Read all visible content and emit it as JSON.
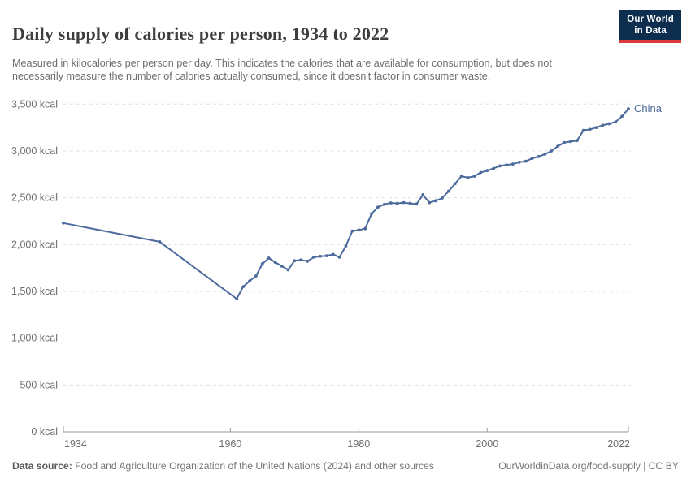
{
  "header": {
    "title": "Daily supply of calories per person, 1934 to 2022",
    "subtitle": "Measured in kilocalories per person per day. This indicates the calories that are available for consumption, but does not necessarily measure the number of calories actually consumed, since it doesn't factor in consumer waste.",
    "logo_line1": "Our World",
    "logo_line2": "in Data",
    "logo_bg_color": "#0d2e4e",
    "logo_stripe_color": "#dc3a40"
  },
  "chart_data": {
    "type": "line",
    "title": "Daily supply of calories per person, 1934 to 2022",
    "xlabel": "",
    "ylabel": "",
    "xlim": [
      1934,
      2022
    ],
    "ylim": [
      0,
      3500
    ],
    "grid": "horizontal-dashed",
    "legend_position": "end-of-line-label",
    "x_ticks": [
      1934,
      1960,
      1980,
      2000,
      2022
    ],
    "y_ticks": [
      0,
      500,
      1000,
      1500,
      2000,
      2500,
      3000,
      3500
    ],
    "y_tick_suffix": " kcal",
    "series": [
      {
        "name": "China",
        "color": "#4C6A9C",
        "points": [
          [
            1934,
            2230
          ],
          [
            1949,
            2030
          ],
          [
            1961,
            1420
          ],
          [
            1962,
            1550
          ],
          [
            1963,
            1610
          ],
          [
            1964,
            1665
          ],
          [
            1965,
            1795
          ],
          [
            1966,
            1855
          ],
          [
            1967,
            1810
          ],
          [
            1968,
            1770
          ],
          [
            1969,
            1730
          ],
          [
            1970,
            1827
          ],
          [
            1971,
            1836
          ],
          [
            1972,
            1822
          ],
          [
            1973,
            1865
          ],
          [
            1974,
            1875
          ],
          [
            1975,
            1880
          ],
          [
            1976,
            1895
          ],
          [
            1977,
            1865
          ],
          [
            1978,
            1985
          ],
          [
            1979,
            2145
          ],
          [
            1980,
            2155
          ],
          [
            1981,
            2170
          ],
          [
            1982,
            2330
          ],
          [
            1983,
            2400
          ],
          [
            1984,
            2430
          ],
          [
            1985,
            2445
          ],
          [
            1986,
            2440
          ],
          [
            1987,
            2448
          ],
          [
            1988,
            2440
          ],
          [
            1989,
            2433
          ],
          [
            1990,
            2532
          ],
          [
            1991,
            2448
          ],
          [
            1992,
            2468
          ],
          [
            1993,
            2497
          ],
          [
            1994,
            2570
          ],
          [
            1995,
            2650
          ],
          [
            1996,
            2730
          ],
          [
            1997,
            2715
          ],
          [
            1998,
            2730
          ],
          [
            1999,
            2770
          ],
          [
            2000,
            2790
          ],
          [
            2001,
            2813
          ],
          [
            2002,
            2840
          ],
          [
            2003,
            2850
          ],
          [
            2004,
            2860
          ],
          [
            2005,
            2880
          ],
          [
            2006,
            2890
          ],
          [
            2007,
            2920
          ],
          [
            2008,
            2940
          ],
          [
            2009,
            2965
          ],
          [
            2010,
            3000
          ],
          [
            2011,
            3050
          ],
          [
            2012,
            3090
          ],
          [
            2013,
            3100
          ],
          [
            2014,
            3110
          ],
          [
            2015,
            3220
          ],
          [
            2016,
            3230
          ],
          [
            2017,
            3250
          ],
          [
            2018,
            3275
          ],
          [
            2019,
            3290
          ],
          [
            2020,
            3310
          ],
          [
            2021,
            3370
          ],
          [
            2022,
            3450
          ]
        ]
      }
    ]
  },
  "footer": {
    "source_label": "Data source:",
    "source_text": " Food and Agriculture Organization of the United Nations (2024) and other sources",
    "link_text": "OurWorldinData.org/food-supply | CC BY"
  }
}
